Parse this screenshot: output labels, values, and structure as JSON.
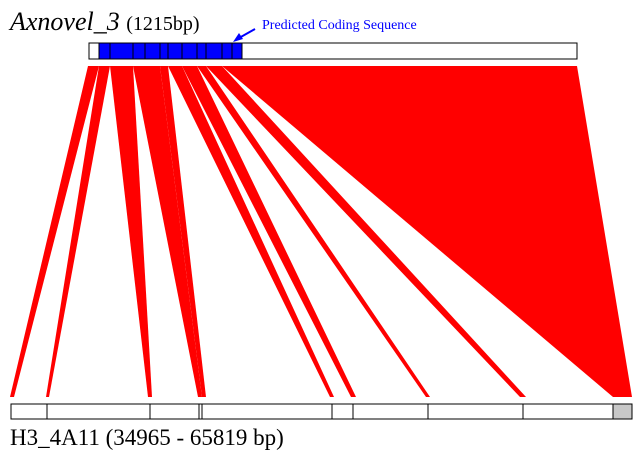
{
  "transcript": {
    "name": "Axnovel_3",
    "length_label": "(1215bp)"
  },
  "cds_label": "Predicted Coding Sequence",
  "genomic": {
    "label": "H3_4A11 (34965 - 65819 bp)"
  },
  "colors": {
    "alignment": "#ff0000",
    "cds": "#0000ff",
    "cds_label": "#0000ff",
    "outline": "#000000",
    "utr_block": "#c8c8c8",
    "background": "#ffffff"
  },
  "exon_count": 11
}
